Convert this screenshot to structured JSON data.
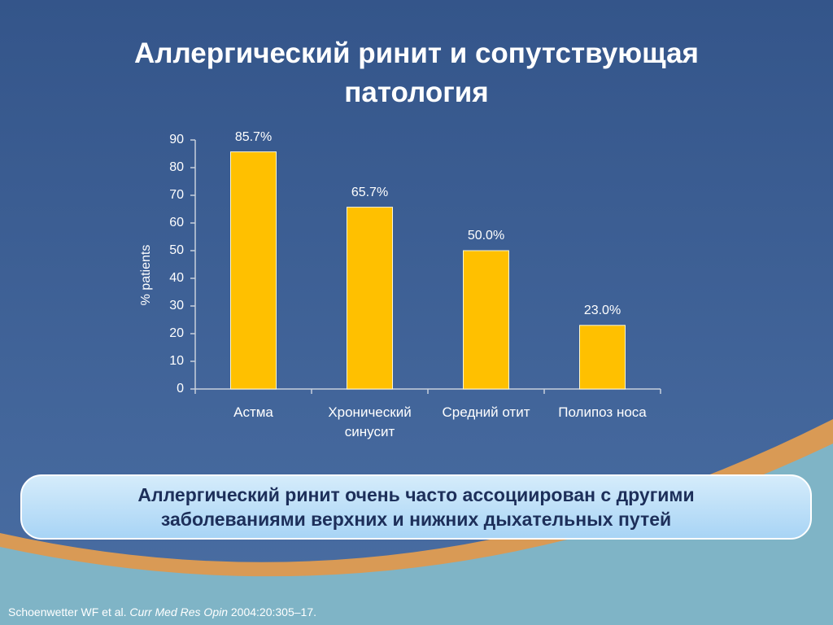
{
  "title": "Аллергический ринит и сопутствующая патология",
  "chart_data": {
    "type": "bar",
    "categories": [
      "Астма",
      "Хронический синусит",
      "Средний отит",
      "Полипоз носа"
    ],
    "values": [
      85.7,
      65.7,
      50.0,
      23.0
    ],
    "value_labels": [
      "85.7%",
      "65.7%",
      "50.0%",
      "23.0%"
    ],
    "color": "#ffc000",
    "y_label": "% patients",
    "ylim": [
      0,
      90
    ],
    "yticks": [
      0,
      10,
      20,
      30,
      40,
      50,
      60,
      70,
      80,
      90
    ]
  },
  "callout": "Аллергический ринит очень часто ассоциирован с другими заболеваниями верхних и нижних дыхательных путей",
  "footnote": {
    "authors": "Schoenwetter WF et al.",
    "journal": "Curr Med Res Opin",
    "citation": "2004:20:305–17."
  }
}
